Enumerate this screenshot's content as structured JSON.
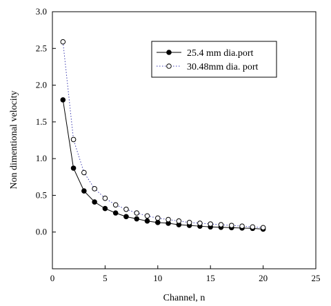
{
  "chart_data": {
    "type": "line",
    "xlabel": "Channel, n",
    "ylabel": "Non dimentional velocity",
    "xlim": [
      0,
      25
    ],
    "ylim": [
      -0.5,
      3.0
    ],
    "xticks": [
      "0",
      "5",
      "10",
      "15",
      "20",
      "25"
    ],
    "yticks": [
      "0.0",
      "0.5",
      "1.0",
      "1.5",
      "2.0",
      "2.5",
      "3.0"
    ],
    "grid": false,
    "legend_position": "top-right",
    "series": [
      {
        "name": "25.4 mm dia.port",
        "marker": "filled-circle",
        "line": "solid",
        "color": "#000000",
        "x": [
          1,
          2,
          3,
          4,
          5,
          6,
          7,
          8,
          9,
          10,
          11,
          12,
          13,
          14,
          15,
          16,
          17,
          18,
          19,
          20
        ],
        "y": [
          1.8,
          0.87,
          0.56,
          0.41,
          0.32,
          0.26,
          0.21,
          0.18,
          0.15,
          0.13,
          0.12,
          0.1,
          0.09,
          0.08,
          0.07,
          0.065,
          0.06,
          0.055,
          0.05,
          0.04
        ]
      },
      {
        "name": "30.48mm dia. port",
        "marker": "open-circle",
        "line": "dotted",
        "color": "#3a3ab0",
        "x": [
          1,
          2,
          3,
          4,
          5,
          6,
          7,
          8,
          9,
          10,
          11,
          12,
          13,
          14,
          15,
          16,
          17,
          18,
          19,
          20
        ],
        "y": [
          2.59,
          1.26,
          0.81,
          0.59,
          0.46,
          0.37,
          0.31,
          0.26,
          0.22,
          0.19,
          0.17,
          0.15,
          0.13,
          0.12,
          0.11,
          0.1,
          0.09,
          0.08,
          0.07,
          0.06
        ]
      }
    ]
  }
}
